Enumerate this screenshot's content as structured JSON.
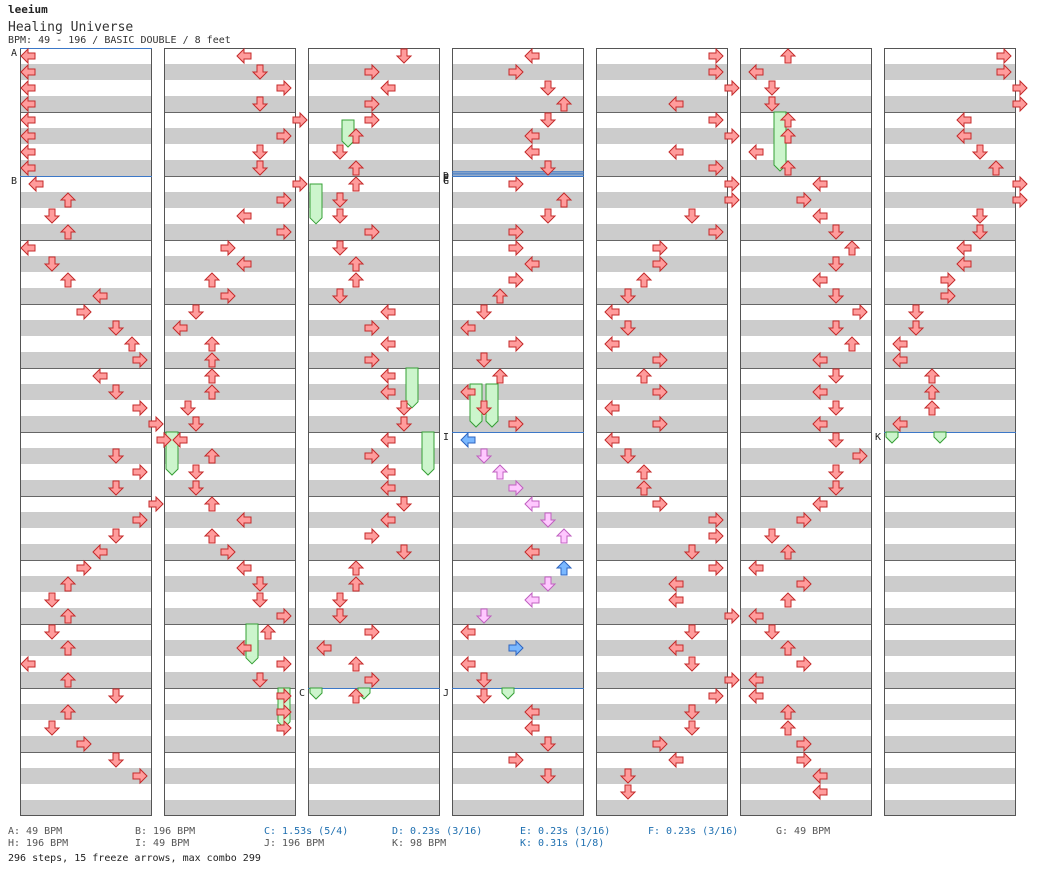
{
  "header": {
    "author": "leeium",
    "title": "Healing Universe",
    "meta": "BPM: 49 - 196 / BASIC DOUBLE / 8 feet"
  },
  "colors": {
    "note_red": "#ff9c9c",
    "note_red_stroke": "#c42a2a",
    "note_blue": "#7ab8ff",
    "note_blue_stroke": "#2d64c0",
    "note_pink": "#ffc8ff",
    "note_pink_stroke": "#c060c0",
    "freeze_fill": "#ccf5cc",
    "freeze_stroke": "#36a036",
    "band_gray": "#cccccc",
    "marker_line": "#3c78c8"
  },
  "chart_data": {
    "type": "step-chart",
    "columns": 7,
    "measures_per_column": 12,
    "lanes": 8,
    "steps_per_measure": 4,
    "markers": [
      {
        "label": "A",
        "col": 0,
        "pos": 0
      },
      {
        "label": "B",
        "col": 0,
        "pos": 8
      },
      {
        "label": "C",
        "col": 2,
        "pos": 40
      },
      {
        "label": "D",
        "col": 3,
        "pos": 7.7
      },
      {
        "label": "E",
        "col": 3,
        "pos": 7.8
      },
      {
        "label": "F",
        "col": 3,
        "pos": 7.9
      },
      {
        "label": "G",
        "col": 3,
        "pos": 8
      },
      {
        "label": "I",
        "col": 3,
        "pos": 24
      },
      {
        "label": "J",
        "col": 3,
        "pos": 40
      },
      {
        "label": "K",
        "col": 6,
        "pos": 24
      }
    ],
    "notes": [
      [
        [
          0,
          0
        ],
        [
          0,
          0
        ],
        [
          0,
          0
        ],
        [
          0,
          0
        ],
        [
          0,
          0
        ],
        [
          0,
          0
        ],
        [
          0,
          0
        ],
        [
          0,
          0
        ],
        [
          1,
          0
        ],
        [
          5,
          0
        ],
        [
          3,
          0
        ],
        [
          5,
          0
        ],
        [
          0,
          0
        ],
        [
          3,
          0
        ],
        [
          5,
          0
        ],
        [
          9,
          0
        ],
        [
          7,
          0
        ],
        [
          11,
          0
        ],
        [
          13,
          0
        ],
        [
          14,
          0
        ],
        [
          9,
          0
        ],
        [
          11,
          0
        ],
        [
          14,
          0
        ],
        [
          16,
          0
        ],
        [
          17,
          0
        ],
        [
          11,
          0
        ],
        [
          14,
          0
        ],
        [
          11,
          0
        ],
        [
          16,
          0
        ],
        [
          14,
          0
        ],
        [
          11,
          0
        ],
        [
          9,
          0
        ],
        [
          7,
          0
        ],
        [
          5,
          0
        ],
        [
          3,
          0
        ],
        [
          5,
          0
        ],
        [
          3,
          0
        ],
        [
          5,
          0
        ],
        [
          0,
          0
        ],
        [
          5,
          0
        ],
        [
          11,
          0
        ],
        [
          5,
          0
        ],
        [
          3,
          0
        ],
        [
          7,
          0
        ],
        [
          11,
          0
        ],
        [
          14,
          0
        ]
      ],
      [
        [
          9,
          0
        ],
        [
          11,
          0
        ],
        [
          14,
          0
        ],
        [
          11,
          0
        ],
        [
          16,
          0
        ],
        [
          14,
          0
        ],
        [
          11,
          0
        ],
        [
          11,
          0
        ],
        [
          16,
          0
        ],
        [
          14,
          0
        ],
        [
          9,
          0
        ],
        [
          14,
          0
        ],
        [
          7,
          0
        ],
        [
          9,
          0
        ],
        [
          5,
          0
        ],
        [
          7,
          0
        ],
        [
          3,
          0
        ],
        [
          1,
          0
        ],
        [
          5,
          0
        ],
        [
          5,
          0
        ],
        [
          5,
          0
        ],
        [
          5,
          0
        ],
        [
          2,
          0
        ],
        [
          3,
          0
        ],
        [
          1,
          0
        ],
        [
          5,
          0
        ],
        [
          3,
          0
        ],
        [
          3,
          0
        ],
        [
          5,
          0
        ],
        [
          9,
          0
        ],
        [
          5,
          0
        ],
        [
          7,
          0
        ],
        [
          9,
          0
        ],
        [
          11,
          0
        ],
        [
          11,
          0
        ],
        [
          14,
          0
        ],
        [
          12,
          0
        ],
        [
          9,
          0
        ],
        [
          14,
          0
        ],
        [
          11,
          0
        ],
        [
          14,
          0
        ],
        [
          14,
          0
        ],
        [
          14,
          0
        ]
      ],
      [
        [
          11,
          0
        ],
        [
          7,
          0
        ],
        [
          9,
          0
        ],
        [
          7,
          0
        ],
        [
          7,
          0
        ],
        [
          5,
          0
        ],
        [
          3,
          0
        ],
        [
          5,
          0
        ],
        [
          5,
          0
        ],
        [
          3,
          0
        ],
        [
          3,
          0
        ],
        [
          7,
          0
        ],
        [
          3,
          0
        ],
        [
          5,
          0
        ],
        [
          5,
          0
        ],
        [
          3,
          0
        ],
        [
          9,
          0
        ],
        [
          7,
          0
        ],
        [
          9,
          0
        ],
        [
          7,
          0
        ],
        [
          9,
          0
        ],
        [
          9,
          0
        ],
        [
          11,
          0
        ],
        [
          11,
          0
        ],
        [
          9,
          0
        ],
        [
          7,
          0
        ],
        [
          9,
          0
        ],
        [
          9,
          0
        ],
        [
          11,
          0
        ],
        [
          9,
          0
        ],
        [
          7,
          0
        ],
        [
          11,
          0
        ],
        [
          5,
          0
        ],
        [
          5,
          0
        ],
        [
          3,
          0
        ],
        [
          3,
          0
        ],
        [
          7,
          0
        ],
        [
          1,
          0
        ],
        [
          5,
          0
        ],
        [
          7,
          0
        ],
        [
          5,
          0
        ]
      ],
      [
        [
          9,
          0
        ],
        [
          7,
          0
        ],
        [
          11,
          0
        ],
        [
          13,
          0
        ],
        [
          11,
          0
        ],
        [
          9,
          0
        ],
        [
          9,
          0
        ],
        [
          11,
          0
        ],
        [
          7,
          0
        ],
        [
          13,
          0
        ],
        [
          11,
          0
        ],
        [
          7,
          0
        ],
        [
          7,
          0
        ],
        [
          9,
          0
        ],
        [
          7,
          0
        ],
        [
          5,
          0
        ],
        [
          3,
          0
        ],
        [
          1,
          0
        ],
        [
          7,
          0
        ],
        [
          3,
          0
        ],
        [
          5,
          0
        ],
        [
          1,
          0
        ],
        [
          3,
          0
        ],
        [
          7,
          0
        ],
        [
          1,
          1
        ],
        [
          3,
          2
        ],
        [
          5,
          2
        ],
        [
          7,
          2
        ],
        [
          9,
          2
        ],
        [
          11,
          2
        ],
        [
          13,
          2
        ],
        [
          9,
          0
        ],
        [
          13,
          1
        ],
        [
          11,
          2
        ],
        [
          9,
          2
        ],
        [
          3,
          2
        ],
        [
          1,
          0
        ],
        [
          7,
          1
        ],
        [
          1,
          0
        ],
        [
          3,
          0
        ],
        [
          3,
          0
        ],
        [
          9,
          0
        ],
        [
          9,
          0
        ],
        [
          11,
          0
        ],
        [
          7,
          0
        ],
        [
          11,
          0
        ]
      ],
      [
        [
          14,
          0
        ],
        [
          14,
          0
        ],
        [
          16,
          0
        ],
        [
          9,
          0
        ],
        [
          14,
          0
        ],
        [
          16,
          0
        ],
        [
          9,
          0
        ],
        [
          14,
          0
        ],
        [
          16,
          0
        ],
        [
          16,
          0
        ],
        [
          11,
          0
        ],
        [
          14,
          0
        ],
        [
          7,
          0
        ],
        [
          7,
          0
        ],
        [
          5,
          0
        ],
        [
          3,
          0
        ],
        [
          1,
          0
        ],
        [
          3,
          0
        ],
        [
          1,
          0
        ],
        [
          7,
          0
        ],
        [
          5,
          0
        ],
        [
          7,
          0
        ],
        [
          1,
          0
        ],
        [
          7,
          0
        ],
        [
          1,
          0
        ],
        [
          3,
          0
        ],
        [
          5,
          0
        ],
        [
          5,
          0
        ],
        [
          7,
          0
        ],
        [
          14,
          0
        ],
        [
          14,
          0
        ],
        [
          11,
          0
        ],
        [
          14,
          0
        ],
        [
          9,
          0
        ],
        [
          9,
          0
        ],
        [
          16,
          0
        ],
        [
          11,
          0
        ],
        [
          9,
          0
        ],
        [
          11,
          0
        ],
        [
          16,
          0
        ],
        [
          14,
          0
        ],
        [
          11,
          0
        ],
        [
          11,
          0
        ],
        [
          7,
          0
        ],
        [
          9,
          0
        ],
        [
          3,
          0
        ],
        [
          3,
          0
        ]
      ],
      [
        [
          5,
          0
        ],
        [
          1,
          0
        ],
        [
          3,
          0
        ],
        [
          3,
          0
        ],
        [
          5,
          0
        ],
        [
          5,
          0
        ],
        [
          1,
          0
        ],
        [
          5,
          0
        ],
        [
          9,
          0
        ],
        [
          7,
          0
        ],
        [
          9,
          0
        ],
        [
          11,
          0
        ],
        [
          13,
          0
        ],
        [
          11,
          0
        ],
        [
          9,
          0
        ],
        [
          11,
          0
        ],
        [
          14,
          0
        ],
        [
          11,
          0
        ],
        [
          13,
          0
        ],
        [
          9,
          0
        ],
        [
          11,
          0
        ],
        [
          9,
          0
        ],
        [
          11,
          0
        ],
        [
          9,
          0
        ],
        [
          11,
          0
        ],
        [
          14,
          0
        ],
        [
          11,
          0
        ],
        [
          11,
          0
        ],
        [
          9,
          0
        ],
        [
          7,
          0
        ],
        [
          3,
          0
        ],
        [
          5,
          0
        ],
        [
          1,
          0
        ],
        [
          7,
          0
        ],
        [
          5,
          0
        ],
        [
          1,
          0
        ],
        [
          3,
          0
        ],
        [
          5,
          0
        ],
        [
          7,
          0
        ],
        [
          1,
          0
        ],
        [
          1,
          0
        ],
        [
          5,
          0
        ],
        [
          5,
          0
        ],
        [
          7,
          0
        ],
        [
          7,
          0
        ],
        [
          9,
          0
        ],
        [
          9,
          0
        ]
      ],
      [
        [
          14,
          0
        ],
        [
          14,
          0
        ],
        [
          16,
          0
        ],
        [
          16,
          0
        ],
        [
          9,
          0
        ],
        [
          9,
          0
        ],
        [
          11,
          0
        ],
        [
          13,
          0
        ],
        [
          16,
          0
        ],
        [
          16,
          0
        ],
        [
          11,
          0
        ],
        [
          11,
          0
        ],
        [
          9,
          0
        ],
        [
          9,
          0
        ],
        [
          7,
          0
        ],
        [
          7,
          0
        ],
        [
          3,
          0
        ],
        [
          3,
          0
        ],
        [
          1,
          0
        ],
        [
          1,
          0
        ],
        [
          5,
          0
        ],
        [
          5,
          0
        ],
        [
          5,
          0
        ],
        [
          1,
          0
        ]
      ]
    ],
    "freezes": [
      {
        "col": 0,
        "lane": 0,
        "start": 0,
        "end": 0
      },
      {
        "col": 1,
        "lane": 0,
        "start": 24,
        "end": 26.5
      },
      {
        "col": 1,
        "lane": 5,
        "start": 36,
        "end": 38.3
      },
      {
        "col": 1,
        "lane": 7,
        "start": 40,
        "end": 42.3
      },
      {
        "col": 2,
        "lane": 2,
        "start": 4.5,
        "end": 6
      },
      {
        "col": 2,
        "lane": 0,
        "start": 8.5,
        "end": 10.8
      },
      {
        "col": 2,
        "lane": 6,
        "start": 20,
        "end": 22.3
      },
      {
        "col": 2,
        "lane": 7,
        "start": 24,
        "end": 26.5
      },
      {
        "col": 2,
        "lane": 0,
        "start": 40,
        "end": 40.5
      },
      {
        "col": 2,
        "lane": 3,
        "start": 40,
        "end": 40.5
      },
      {
        "col": 3,
        "lane": 1,
        "start": 21,
        "end": 23.5
      },
      {
        "col": 3,
        "lane": 2,
        "start": 21,
        "end": 23.5
      },
      {
        "col": 3,
        "lane": 3,
        "start": 40,
        "end": 40.5
      },
      {
        "col": 5,
        "lane": 2,
        "start": 4,
        "end": 7.5
      },
      {
        "col": 6,
        "lane": 0,
        "start": 24,
        "end": 24.5
      },
      {
        "col": 6,
        "lane": 3,
        "start": 24,
        "end": 24.5
      }
    ],
    "legend": [
      {
        "id": "a",
        "text": "A: 49 BPM",
        "kind": "bpm"
      },
      {
        "id": "b",
        "text": "B: 196 BPM",
        "kind": "bpm"
      },
      {
        "id": "c",
        "text": "C: 1.53s (5/4)",
        "kind": "stop"
      },
      {
        "id": "d",
        "text": "D: 0.23s (3/16)",
        "kind": "stop"
      },
      {
        "id": "e",
        "text": "E: 0.23s (3/16)",
        "kind": "stop"
      },
      {
        "id": "f",
        "text": "F: 0.23s (3/16)",
        "kind": "stop"
      },
      {
        "id": "g",
        "text": "G: 49 BPM",
        "kind": "bpm"
      },
      {
        "id": "h",
        "text": "H: 196 BPM",
        "kind": "bpm"
      },
      {
        "id": "i",
        "text": "I: 49 BPM",
        "kind": "bpm"
      },
      {
        "id": "j",
        "text": "J: 196 BPM",
        "kind": "bpm"
      },
      {
        "id": "k_bpm",
        "text": "K: 98 BPM",
        "kind": "bpm"
      },
      {
        "id": "k_stop",
        "text": "K: 0.31s (1/8)",
        "kind": "stop"
      }
    ]
  },
  "stats": "296 steps, 15 freeze arrows, max combo 299"
}
